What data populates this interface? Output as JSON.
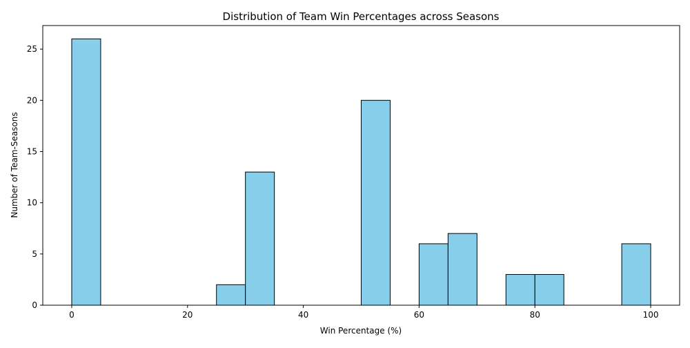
{
  "chart_data": {
    "type": "bar",
    "subtype": "histogram",
    "title": "Distribution of Team Win Percentages across Seasons",
    "xlabel": "Win Percentage (%)",
    "ylabel": "Number of Team-Seasons",
    "xlim": [
      -5,
      105
    ],
    "ylim": [
      0,
      27.3
    ],
    "xticks": [
      0,
      20,
      40,
      60,
      80,
      100
    ],
    "yticks": [
      0,
      5,
      10,
      15,
      20,
      25
    ],
    "bin_width": 5,
    "bins": [
      {
        "start": 0,
        "end": 5,
        "count": 26
      },
      {
        "start": 5,
        "end": 10,
        "count": 0
      },
      {
        "start": 10,
        "end": 15,
        "count": 0
      },
      {
        "start": 15,
        "end": 20,
        "count": 0
      },
      {
        "start": 20,
        "end": 25,
        "count": 0
      },
      {
        "start": 25,
        "end": 30,
        "count": 2
      },
      {
        "start": 30,
        "end": 35,
        "count": 13
      },
      {
        "start": 35,
        "end": 40,
        "count": 0
      },
      {
        "start": 40,
        "end": 45,
        "count": 0
      },
      {
        "start": 45,
        "end": 50,
        "count": 0
      },
      {
        "start": 50,
        "end": 55,
        "count": 20
      },
      {
        "start": 55,
        "end": 60,
        "count": 0
      },
      {
        "start": 60,
        "end": 65,
        "count": 6
      },
      {
        "start": 65,
        "end": 70,
        "count": 7
      },
      {
        "start": 70,
        "end": 75,
        "count": 0
      },
      {
        "start": 75,
        "end": 80,
        "count": 3
      },
      {
        "start": 80,
        "end": 85,
        "count": 3
      },
      {
        "start": 85,
        "end": 90,
        "count": 0
      },
      {
        "start": 90,
        "end": 95,
        "count": 0
      },
      {
        "start": 95,
        "end": 100,
        "count": 6
      }
    ],
    "bar_color": "#87ceeb",
    "edge_color": "#000000",
    "grid": false,
    "legend": "none"
  }
}
